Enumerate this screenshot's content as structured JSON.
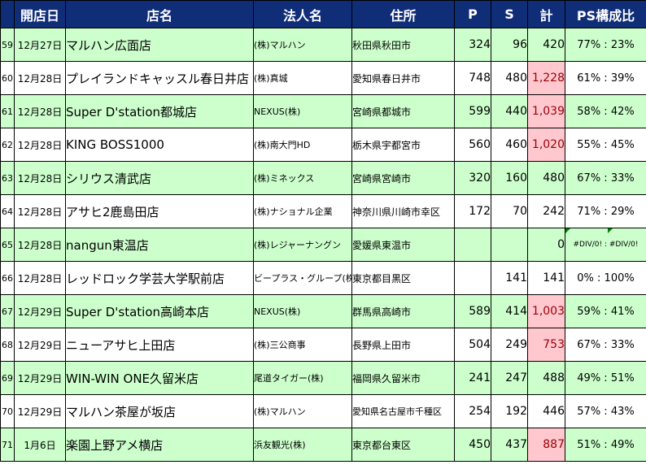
{
  "header": {
    "no": "",
    "date": "開店日",
    "store": "店名",
    "corp": "法人名",
    "addr": "住所",
    "p": "P",
    "s": "S",
    "total": "計",
    "ratio": "PS構成比"
  },
  "rows": [
    {
      "no": "59",
      "date": "12月27日",
      "store": "マルハン広面店",
      "corp": "(株)マルハン",
      "addr": "秋田県秋田市",
      "p": "324",
      "s": "96",
      "total": "420",
      "ratio": "77%  :  23%"
    },
    {
      "no": "60",
      "date": "12月28日",
      "store": "プレイランドキャッスル春日井店",
      "corp": "(株)真城",
      "addr": "愛知県春日井市",
      "p": "748",
      "s": "480",
      "total": "1,228",
      "ratio": "61%  :  39%"
    },
    {
      "no": "61",
      "date": "12月28日",
      "store": "Super D'station都城店",
      "corp": "NEXUS(株)",
      "addr": "宮崎県都城市",
      "p": "599",
      "s": "440",
      "total": "1,039",
      "ratio": "58%  :  42%"
    },
    {
      "no": "62",
      "date": "12月28日",
      "store": "KING BOSS1000",
      "corp": "(株)南大門HD",
      "addr": "栃木県宇都宮市",
      "p": "560",
      "s": "460",
      "total": "1,020",
      "ratio": "55%  :  45%"
    },
    {
      "no": "63",
      "date": "12月28日",
      "store": "シリウス清武店",
      "corp": "(株)ミネックス",
      "addr": "宮崎県宮崎市",
      "p": "320",
      "s": "160",
      "total": "480",
      "ratio": "67%  :  33%"
    },
    {
      "no": "64",
      "date": "12月28日",
      "store": "アサヒ2鹿島田店",
      "corp": "(株)ナショナル企業",
      "addr": "神奈川県川崎市幸区",
      "p": "172",
      "s": "70",
      "total": "242",
      "ratio": "71%  :  29%"
    },
    {
      "no": "65",
      "date": "12月28日",
      "store": "nangun東温店",
      "corp": "(株)レジャーナングン",
      "addr": "愛媛県東温市",
      "p": "",
      "s": "",
      "total": "0",
      "ratio": "#DIV/0!  :  #DIV/0!"
    },
    {
      "no": "66",
      "date": "12月28日",
      "store": "レッドロック学芸大学駅前店",
      "corp": "ビープラス・グループ(株)",
      "addr": "東京都目黒区",
      "p": "",
      "s": "141",
      "total": "141",
      "ratio": "0%  :  100%"
    },
    {
      "no": "67",
      "date": "12月29日",
      "store": "Super D'station高崎本店",
      "corp": "NEXUS(株)",
      "addr": "群馬県高崎市",
      "p": "589",
      "s": "414",
      "total": "1,003",
      "ratio": "59%  :  41%"
    },
    {
      "no": "68",
      "date": "12月29日",
      "store": "ニューアサヒ上田店",
      "corp": "(株)三公商事",
      "addr": "長野県上田市",
      "p": "504",
      "s": "249",
      "total": "753",
      "ratio": "67%  :  33%"
    },
    {
      "no": "69",
      "date": "12月29日",
      "store": "WIN-WIN ONE久留米店",
      "corp": "尾道タイガー(株)",
      "addr": "福岡県久留米市",
      "p": "241",
      "s": "247",
      "total": "488",
      "ratio": "49%  :  51%"
    },
    {
      "no": "70",
      "date": "12月29日",
      "store": "マルハン茶屋が坂店",
      "corp": "(株)マルハン",
      "addr": "愛知県名古屋市千種区",
      "p": "254",
      "s": "192",
      "total": "446",
      "ratio": "57%  :  43%"
    },
    {
      "no": "71",
      "date": "1月6日",
      "store": "楽園上野アメ横店",
      "corp": "浜友観光(株)",
      "addr": "東京都台東区",
      "p": "450",
      "s": "437",
      "total": "887",
      "ratio": "51%  :  49%"
    }
  ],
  "highlight": {
    "total_bg": "#ffc7ce",
    "total_text": "#9c0006",
    "header_bg": "#102d78",
    "row_green": "#ccffcc"
  }
}
